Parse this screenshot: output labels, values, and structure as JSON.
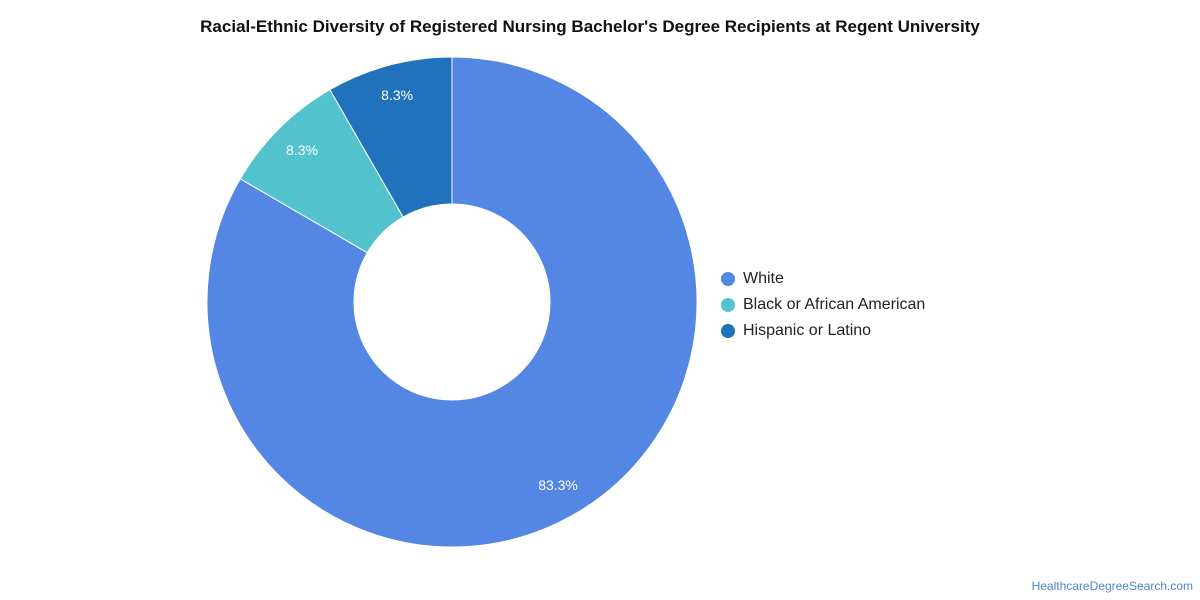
{
  "chart_data": {
    "type": "pie",
    "title": "Racial-Ethnic Diversity of Registered Nursing Bachelor's Degree Recipients at Regent University",
    "donut": true,
    "legend_position": "right",
    "slices": [
      {
        "name": "White",
        "value": 83.3,
        "label": "83.3%",
        "color": "#5486e3"
      },
      {
        "name": "Black or African American",
        "value": 8.3,
        "label": "8.3%",
        "color": "#52c3cd"
      },
      {
        "name": "Hispanic or Latino",
        "value": 8.3,
        "label": "8.3%",
        "color": "#1f72bb"
      }
    ]
  },
  "legend": {
    "items": [
      {
        "label": "White",
        "color": "#5486e3"
      },
      {
        "label": "Black or African American",
        "color": "#52c3cd"
      },
      {
        "label": "Hispanic or Latino",
        "color": "#1f72bb"
      }
    ]
  },
  "source": {
    "label": "HealthcareDegreeSearch.com"
  }
}
